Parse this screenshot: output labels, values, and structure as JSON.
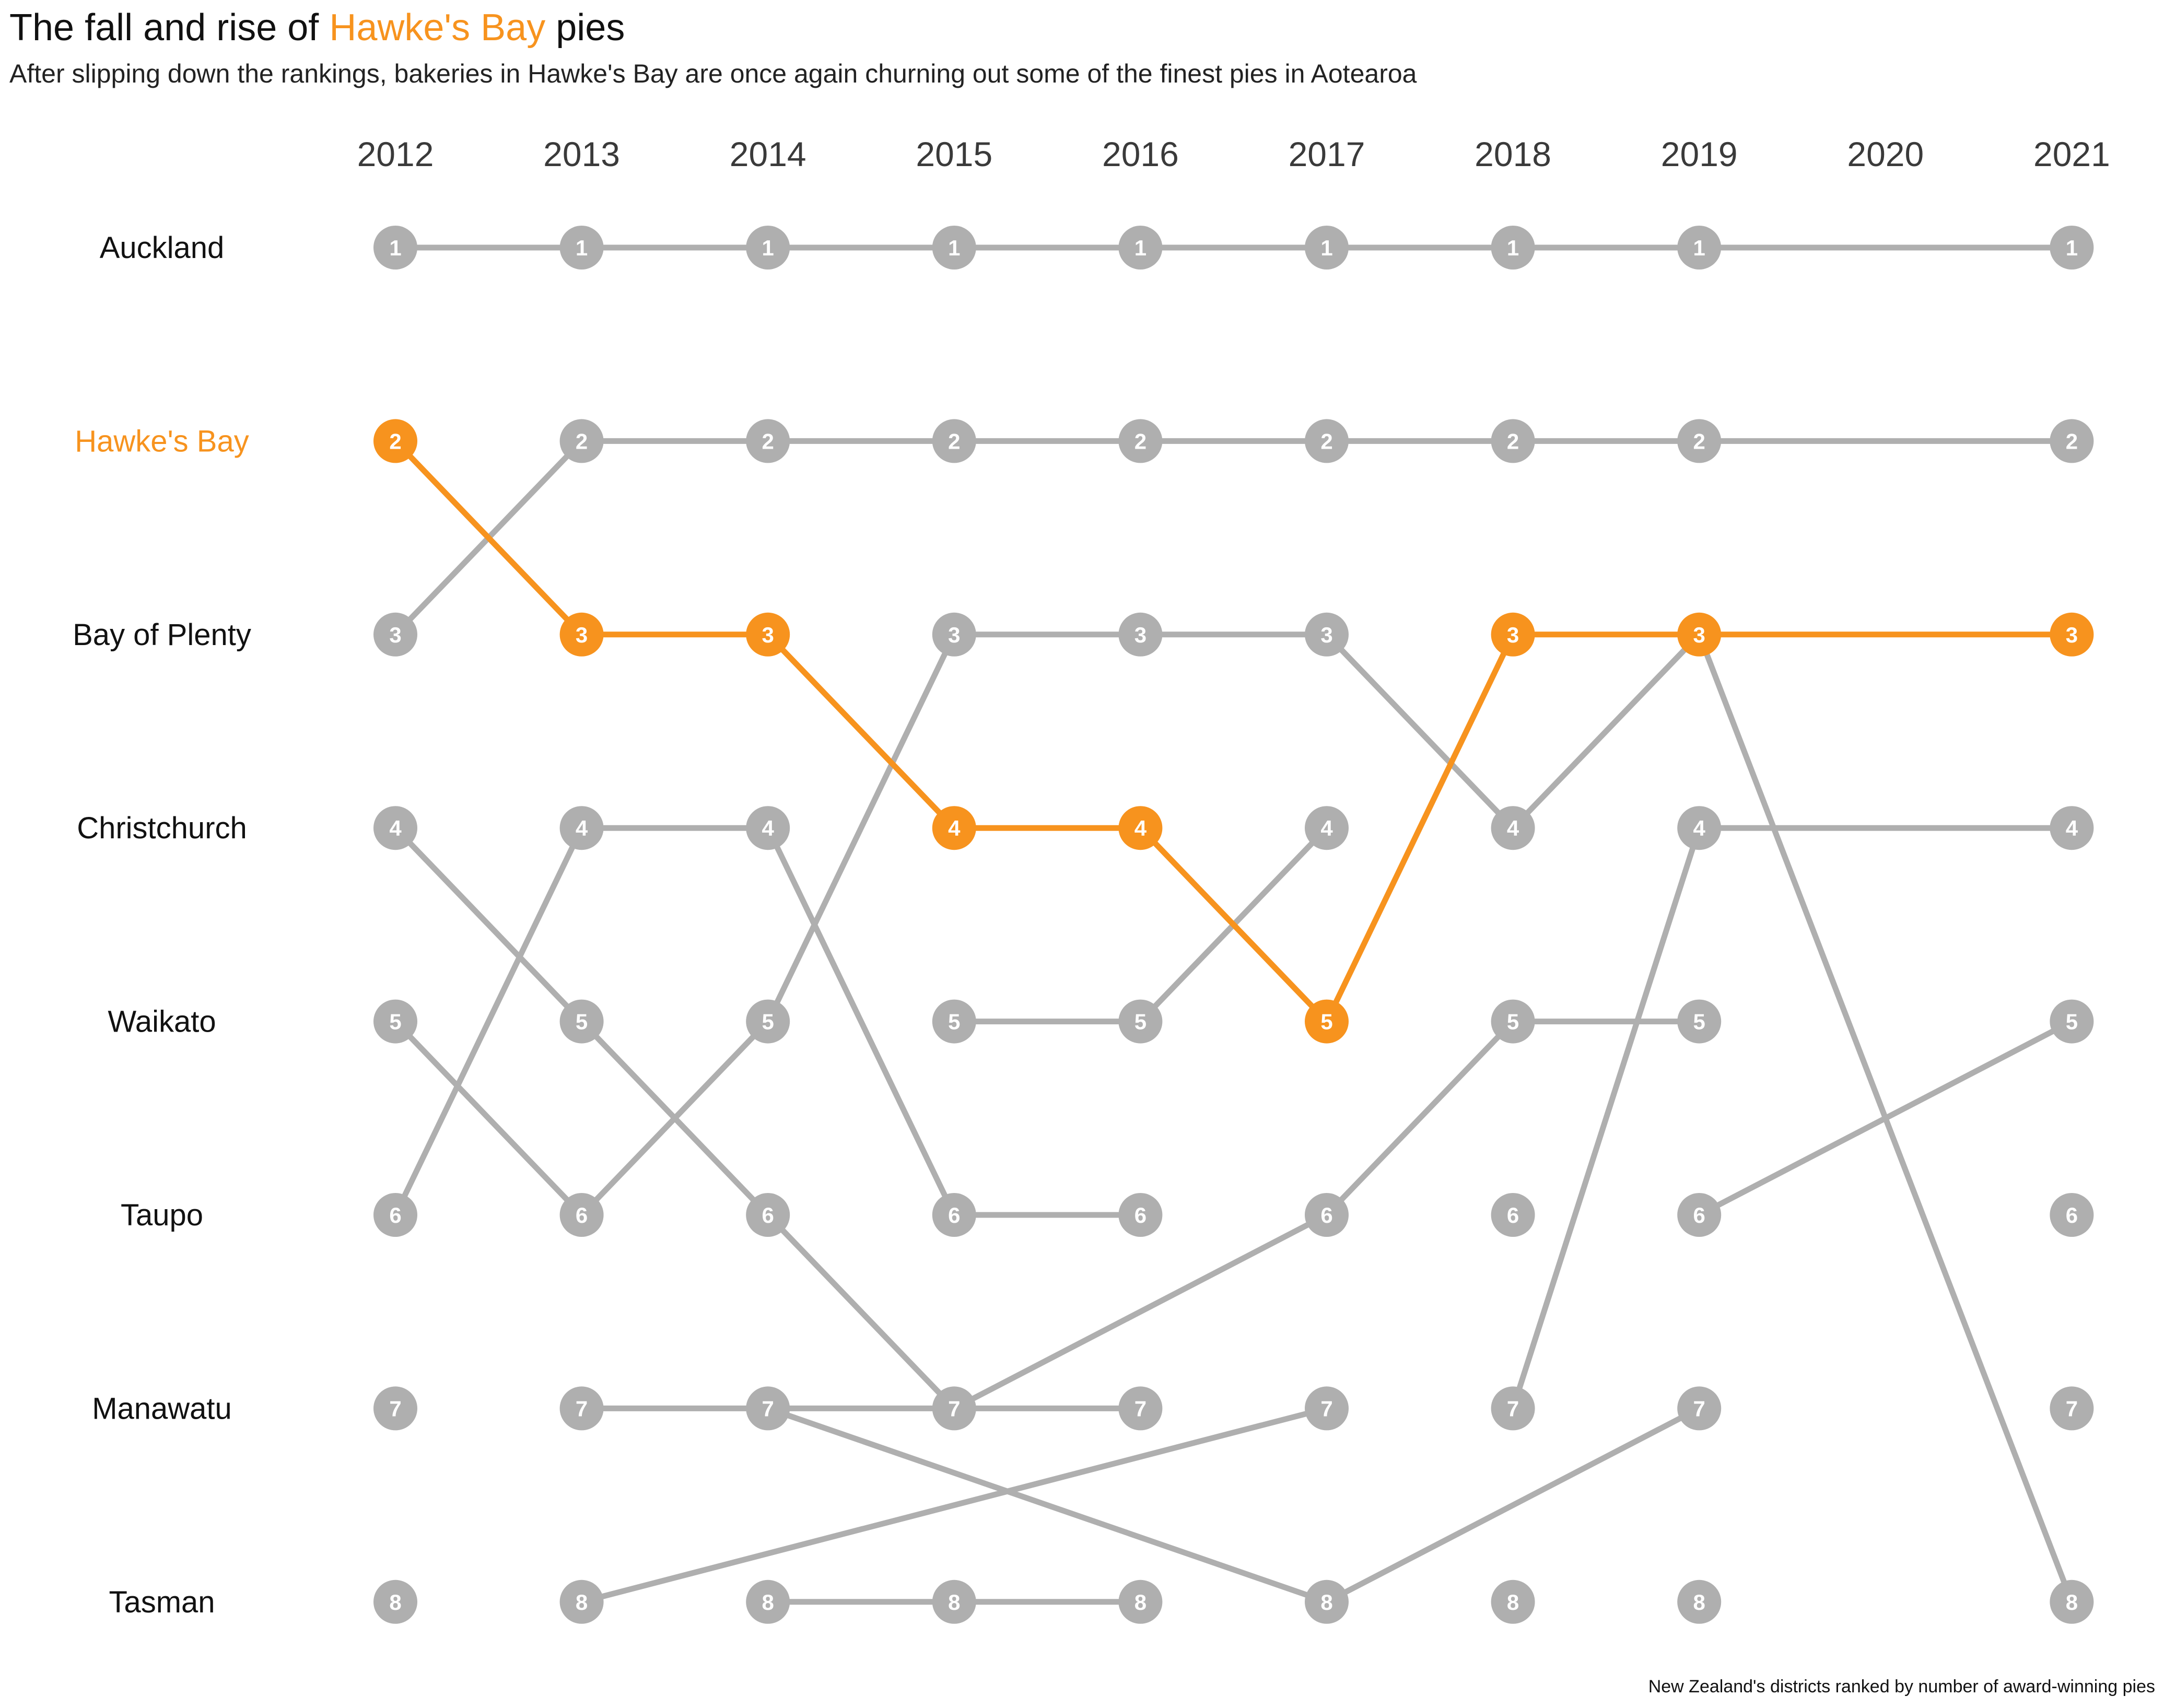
{
  "title": {
    "prefix": "The fall and rise of ",
    "highlight": "Hawke's Bay",
    "suffix": " pies"
  },
  "subtitle": "After slipping down the rankings, bakeries in Hawke's Bay are once again churning out some of the finest pies in Aotearoa",
  "caption": "New Zealand's districts ranked by number of award-winning pies",
  "colors": {
    "highlight": "#F7931E",
    "muted": "#AFAFAF",
    "marker_text": "#ffffff"
  },
  "chart_data": {
    "type": "line",
    "subtype": "bump",
    "x": [
      "2012",
      "2013",
      "2014",
      "2015",
      "2016",
      "2017",
      "2018",
      "2019",
      "2020",
      "2021"
    ],
    "y_tick_labels": [
      "Auckland",
      "Hawke's Bay",
      "Bay of Plenty",
      "Christchurch",
      "Waikato",
      "Taupo",
      "Manawatu",
      "Tasman"
    ],
    "ranks": [
      1,
      2,
      3,
      4,
      5,
      6,
      7,
      8
    ],
    "highlight_series": "Hawke's Bay",
    "rank_points": [
      [
        "2012",
        "2013",
        "2014",
        "2015",
        "2016",
        "2017",
        "2018",
        "2019",
        "2021"
      ]
    ],
    "segments": [
      [
        [
          "2012",
          1
        ],
        [
          "2013",
          1
        ],
        [
          "2014",
          1
        ],
        [
          "2015",
          1
        ],
        [
          "2016",
          1
        ],
        [
          "2017",
          1
        ],
        [
          "2018",
          1
        ],
        [
          "2019",
          1
        ],
        [
          "2021",
          1
        ]
      ],
      [
        [
          "2012",
          3
        ],
        [
          "2013",
          2
        ],
        [
          "2014",
          2
        ],
        [
          "2015",
          2
        ],
        [
          "2016",
          2
        ],
        [
          "2017",
          2
        ],
        [
          "2018",
          2
        ],
        [
          "2019",
          2
        ],
        [
          "2021",
          2
        ]
      ],
      [
        [
          "2012",
          4
        ],
        [
          "2013",
          5
        ],
        [
          "2014",
          6
        ],
        [
          "2015",
          7
        ],
        [
          "2016",
          7
        ]
      ],
      [
        [
          "2012",
          5
        ],
        [
          "2013",
          6
        ],
        [
          "2014",
          5
        ],
        [
          "2015",
          3
        ],
        [
          "2016",
          3
        ],
        [
          "2017",
          3
        ],
        [
          "2018",
          4
        ],
        [
          "2019",
          3
        ],
        [
          "2021",
          8
        ]
      ],
      [
        [
          "2012",
          6
        ],
        [
          "2013",
          4
        ],
        [
          "2014",
          4
        ],
        [
          "2015",
          6
        ],
        [
          "2016",
          6
        ]
      ],
      [
        [
          "2013",
          7
        ],
        [
          "2014",
          7
        ],
        [
          "2015",
          7
        ]
      ],
      [
        [
          "2014",
          7
        ],
        [
          "2017",
          8
        ],
        [
          "2019",
          7
        ]
      ],
      [
        [
          "2013",
          8
        ],
        [
          "2017",
          7
        ]
      ],
      [
        [
          "2014",
          8
        ],
        [
          "2015",
          8
        ],
        [
          "2016",
          8
        ]
      ],
      [
        [
          "2015",
          5
        ],
        [
          "2016",
          5
        ],
        [
          "2017",
          4
        ]
      ],
      [
        [
          "2015",
          7
        ],
        [
          "2017",
          6
        ],
        [
          "2018",
          5
        ],
        [
          "2019",
          5
        ]
      ],
      [
        [
          "2018",
          7
        ],
        [
          "2019",
          4
        ],
        [
          "2021",
          4
        ]
      ],
      [
        [
          "2019",
          6
        ],
        [
          "2021",
          5
        ]
      ]
    ],
    "highlight_values": [
      [
        "2012",
        2
      ],
      [
        "2013",
        3
      ],
      [
        "2014",
        3
      ],
      [
        "2015",
        4
      ],
      [
        "2016",
        4
      ],
      [
        "2017",
        5
      ],
      [
        "2018",
        3
      ],
      [
        "2019",
        3
      ],
      [
        "2021",
        3
      ]
    ]
  }
}
